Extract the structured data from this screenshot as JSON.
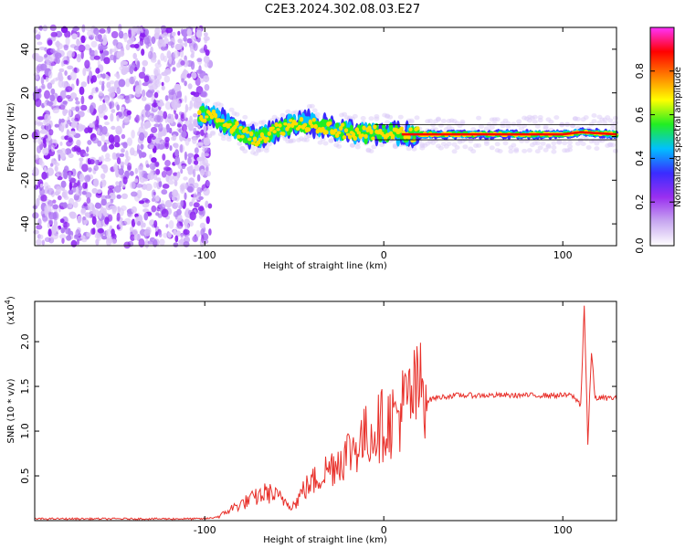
{
  "title": "C2E3.2024.302.08.03.E27",
  "charts": {
    "spectrogram": {
      "type": "heatmap",
      "xlabel": "Height of straight line (km)",
      "ylabel": "Frequency (Hz)",
      "xlim": [
        -195,
        130
      ],
      "ylim": [
        -50,
        50
      ],
      "xticks": [
        -100,
        0,
        100
      ],
      "yticks": [
        40,
        20,
        0,
        -20,
        -40
      ],
      "noise_region_x": [
        -195,
        -97
      ],
      "ridge_frequency_hz": [
        {
          "x": -105,
          "y": 10
        },
        {
          "x": -95,
          "y": 9
        },
        {
          "x": -88,
          "y": 6
        },
        {
          "x": -80,
          "y": 2
        },
        {
          "x": -70,
          "y": -1
        },
        {
          "x": -60,
          "y": 3
        },
        {
          "x": -50,
          "y": 6
        },
        {
          "x": -40,
          "y": 6
        },
        {
          "x": -30,
          "y": 4
        },
        {
          "x": -20,
          "y": 2
        },
        {
          "x": -10,
          "y": 1
        },
        {
          "x": 0,
          "y": 2
        },
        {
          "x": 10,
          "y": 1
        },
        {
          "x": 50,
          "y": 1
        },
        {
          "x": 100,
          "y": 1
        },
        {
          "x": 110,
          "y": 2
        },
        {
          "x": 130,
          "y": 1
        }
      ]
    },
    "colorbar": {
      "label": "Normalized spectral amplitude",
      "ticks": [
        "0.0",
        "0.2",
        "0.4",
        "0.6",
        "0.8"
      ],
      "range": [
        0,
        1
      ],
      "colors": [
        "#ffffff",
        "#c8a8f0",
        "#9a2ff0",
        "#3a2cff",
        "#00c0ff",
        "#22ee22",
        "#ffff00",
        "#ff7f00",
        "#ff0000",
        "#ff33ff"
      ]
    },
    "snr": {
      "type": "line",
      "xlabel": "Height of straight line (km)",
      "ylabel": "SNR (10 * v/v)",
      "exponent_label": "(x10",
      "exponent_power": "4",
      "exponent_close": ")",
      "xlim": [
        -195,
        130
      ],
      "ylim": [
        0,
        2.45
      ],
      "xticks": [
        -100,
        0,
        100
      ],
      "yticks": [
        "0.5",
        "1.0",
        "1.5",
        "2.0"
      ],
      "color": "#e8302a",
      "envelope": [
        {
          "x": -195,
          "y": 0.02
        },
        {
          "x": -100,
          "y": 0.02
        },
        {
          "x": -92,
          "y": 0.04
        },
        {
          "x": -85,
          "y": 0.12
        },
        {
          "x": -75,
          "y": 0.2
        },
        {
          "x": -65,
          "y": 0.28
        },
        {
          "x": -58,
          "y": 0.22
        },
        {
          "x": -50,
          "y": 0.15
        },
        {
          "x": -45,
          "y": 0.3
        },
        {
          "x": -35,
          "y": 0.45
        },
        {
          "x": -25,
          "y": 0.6
        },
        {
          "x": -15,
          "y": 0.75
        },
        {
          "x": -5,
          "y": 0.9
        },
        {
          "x": 5,
          "y": 1.0
        },
        {
          "x": 10,
          "y": 1.1
        },
        {
          "x": 15,
          "y": 1.2
        },
        {
          "x": 20,
          "y": 1.3
        },
        {
          "x": 28,
          "y": 1.37
        },
        {
          "x": 40,
          "y": 1.4
        },
        {
          "x": 80,
          "y": 1.4
        },
        {
          "x": 105,
          "y": 1.4
        },
        {
          "x": 110,
          "y": 1.3
        },
        {
          "x": 112,
          "y": 2.4
        },
        {
          "x": 114,
          "y": 0.85
        },
        {
          "x": 116,
          "y": 1.9
        },
        {
          "x": 118,
          "y": 1.37
        },
        {
          "x": 130,
          "y": 1.37
        }
      ]
    }
  }
}
